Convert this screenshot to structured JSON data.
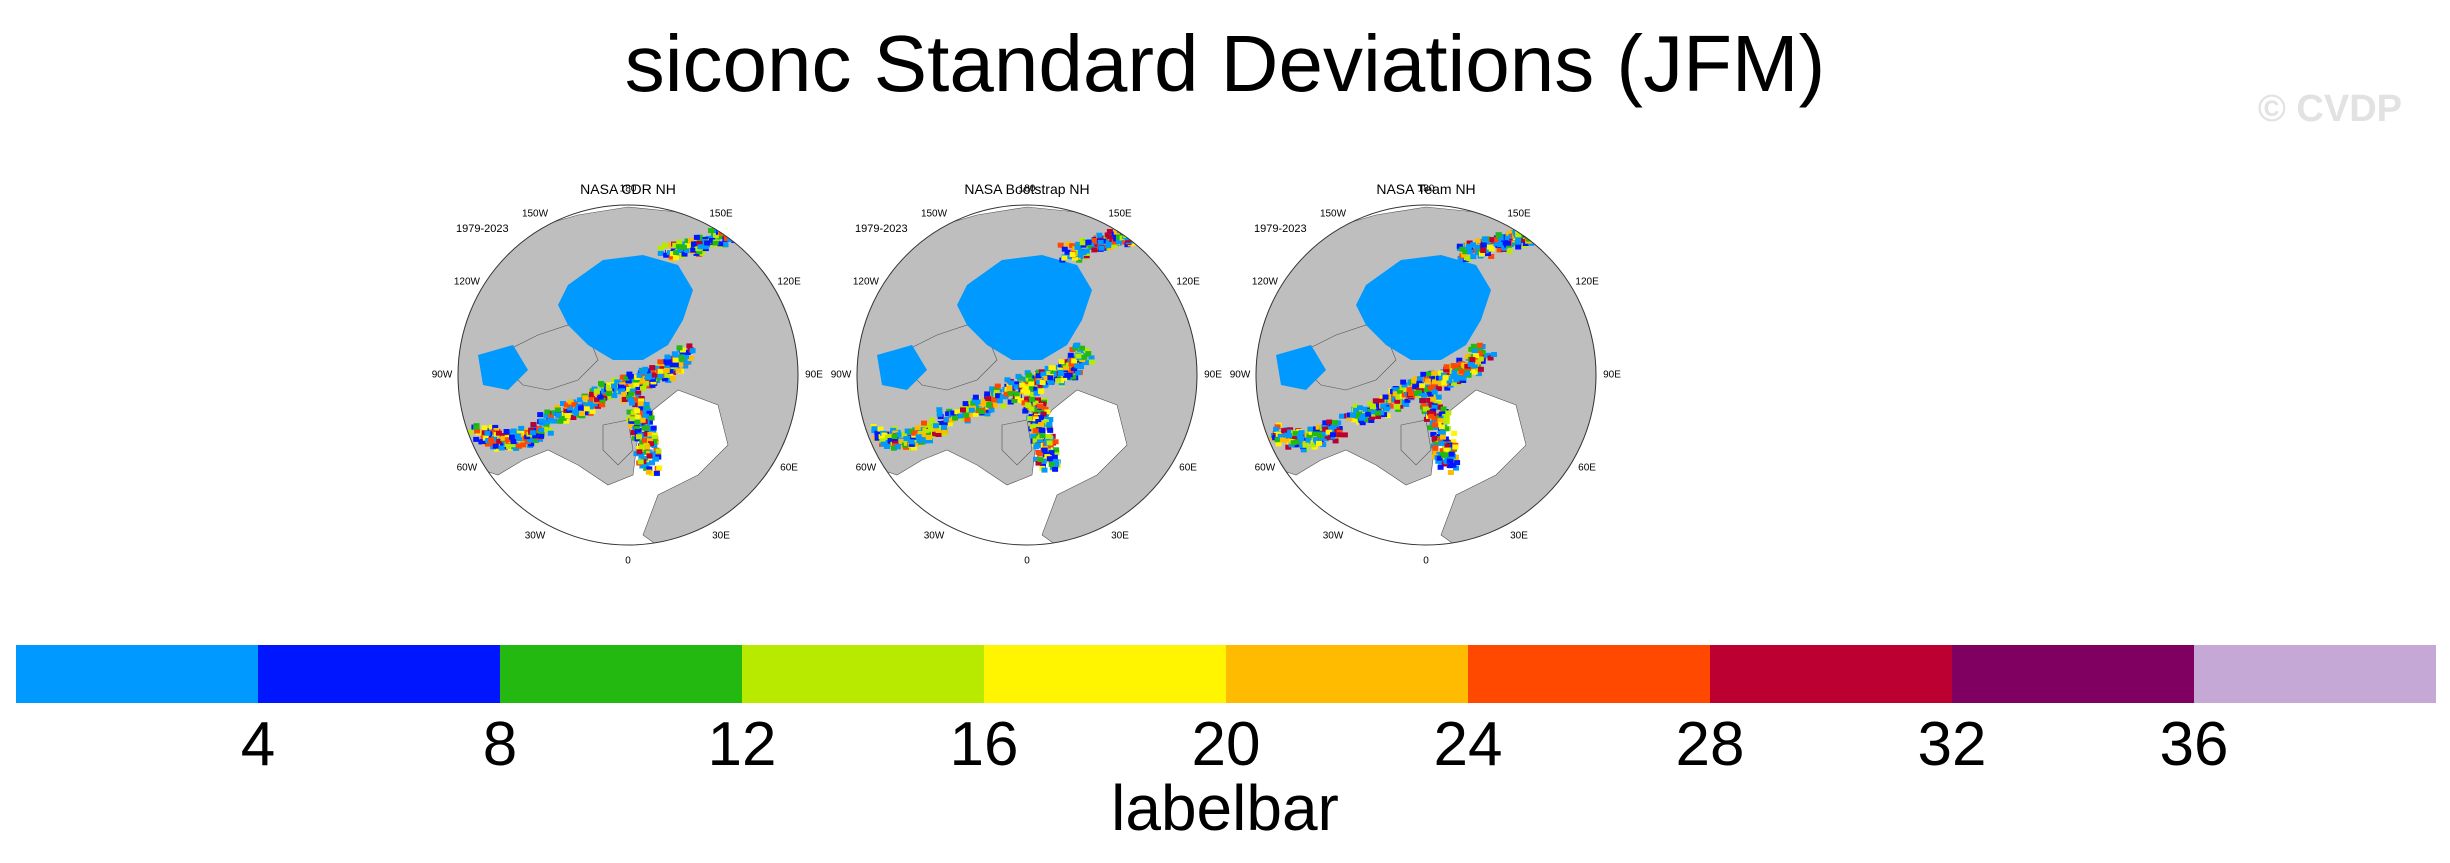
{
  "title": "siconc Standard Deviations (JFM)",
  "watermark": "© CVDP",
  "period": "1979-2023",
  "lon_labels": [
    "180",
    "150E",
    "120E",
    "90E",
    "60E",
    "30E",
    "0",
    "30W",
    "60W",
    "90W",
    "120W",
    "150W"
  ],
  "panels": [
    {
      "title": "NASA CDR NH"
    },
    {
      "title": "NASA Bootstrap NH"
    },
    {
      "title": "NASA Team NH"
    }
  ],
  "colorbar": {
    "colors": [
      "#0099ff",
      "#0016ff",
      "#23b910",
      "#b8ea00",
      "#fff500",
      "#ffbb00",
      "#ff4800",
      "#bc0032",
      "#7f0061",
      "#c6a8d6"
    ],
    "ticks": [
      "4",
      "8",
      "12",
      "16",
      "20",
      "24",
      "28",
      "32",
      "36"
    ],
    "label": "labelbar"
  },
  "colors": {
    "land": "#bebebe",
    "ice": "#0099ff",
    "ocean": "#ffffff"
  }
}
